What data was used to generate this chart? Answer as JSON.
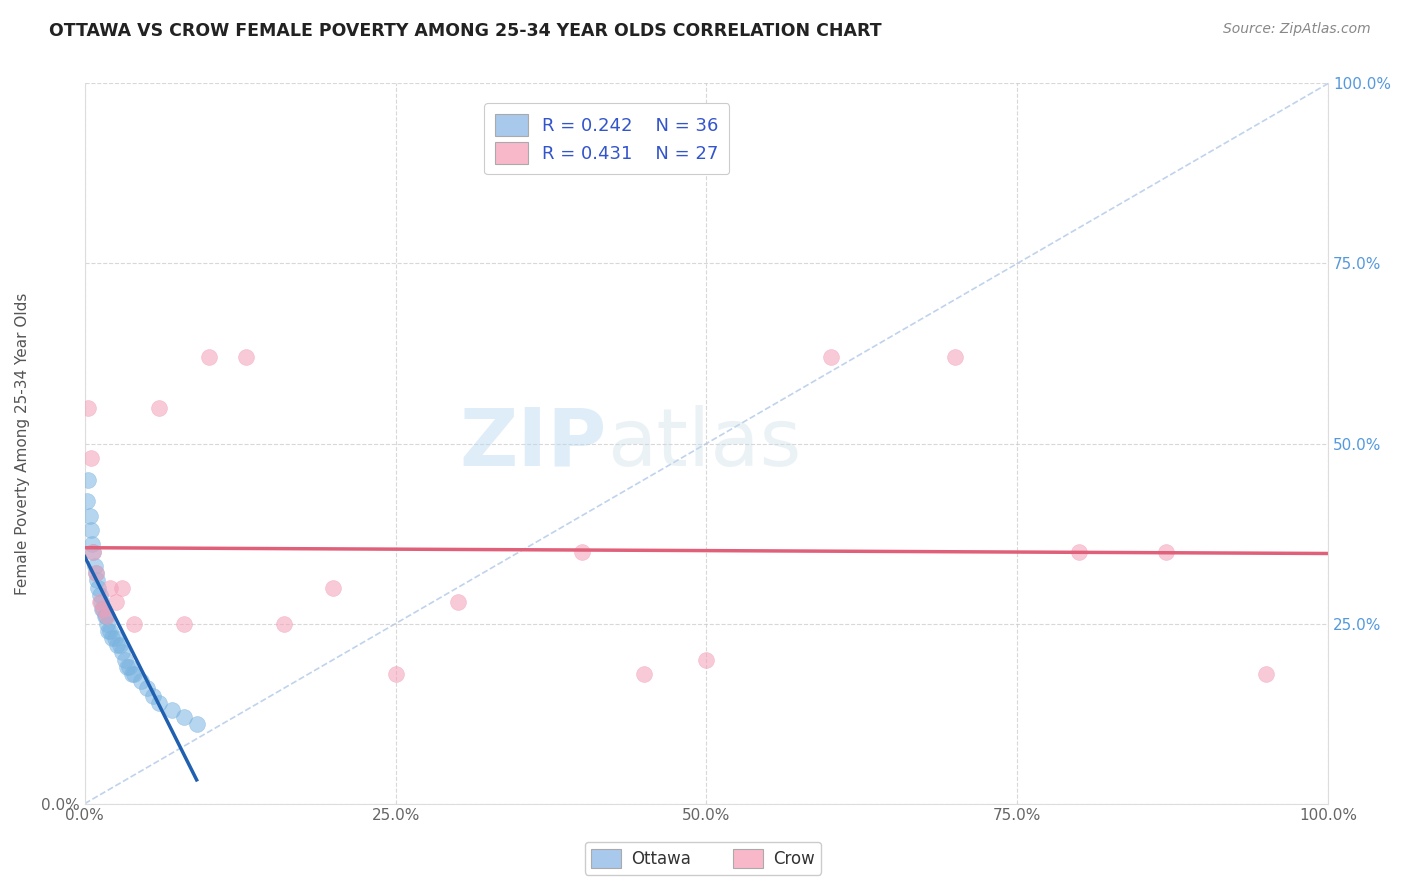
{
  "title": "OTTAWA VS CROW FEMALE POVERTY AMONG 25-34 YEAR OLDS CORRELATION CHART",
  "source": "Source: ZipAtlas.com",
  "ylabel": "Female Poverty Among 25-34 Year Olds",
  "watermark_zip": "ZIP",
  "watermark_atlas": "atlas",
  "legend_ottawa_R": "0.242",
  "legend_ottawa_N": "36",
  "legend_crow_R": "0.431",
  "legend_crow_N": "27",
  "ottawa_color": "#7ab4e0",
  "crow_color": "#f4a0b8",
  "ottawa_line_color": "#2060b0",
  "crow_line_color": "#e0607a",
  "diag_line_color": "#b0c8e8",
  "bg_color": "#ffffff",
  "grid_color": "#c8c8c8",
  "title_color": "#222222",
  "right_tick_color": "#5599dd",
  "axis_tick_color": "#666666",
  "source_color": "#888888",
  "xlim": [
    0.0,
    1.0
  ],
  "ylim": [
    0.0,
    1.0
  ],
  "figsize": [
    14.06,
    8.92
  ],
  "ottawa_x": [
    0.002,
    0.003,
    0.004,
    0.005,
    0.006,
    0.007,
    0.008,
    0.009,
    0.01,
    0.011,
    0.012,
    0.013,
    0.014,
    0.015,
    0.016,
    0.017,
    0.018,
    0.019,
    0.02,
    0.022,
    0.024,
    0.026,
    0.028,
    0.03,
    0.032,
    0.034,
    0.036,
    0.038,
    0.04,
    0.045,
    0.05,
    0.055,
    0.06,
    0.07,
    0.08,
    0.09
  ],
  "ottawa_y": [
    0.42,
    0.45,
    0.4,
    0.38,
    0.36,
    0.35,
    0.33,
    0.32,
    0.31,
    0.3,
    0.29,
    0.28,
    0.27,
    0.27,
    0.26,
    0.26,
    0.25,
    0.24,
    0.24,
    0.23,
    0.23,
    0.22,
    0.22,
    0.21,
    0.2,
    0.19,
    0.19,
    0.18,
    0.18,
    0.17,
    0.16,
    0.15,
    0.14,
    0.13,
    0.12,
    0.11
  ],
  "crow_x": [
    0.003,
    0.005,
    0.007,
    0.009,
    0.012,
    0.015,
    0.018,
    0.02,
    0.025,
    0.03,
    0.04,
    0.06,
    0.08,
    0.1,
    0.13,
    0.16,
    0.2,
    0.25,
    0.3,
    0.4,
    0.45,
    0.5,
    0.6,
    0.7,
    0.8,
    0.87,
    0.95
  ],
  "crow_y": [
    0.55,
    0.48,
    0.35,
    0.32,
    0.28,
    0.27,
    0.26,
    0.3,
    0.28,
    0.3,
    0.25,
    0.55,
    0.25,
    0.62,
    0.62,
    0.25,
    0.3,
    0.18,
    0.28,
    0.35,
    0.18,
    0.2,
    0.62,
    0.62,
    0.35,
    0.35,
    0.18
  ]
}
